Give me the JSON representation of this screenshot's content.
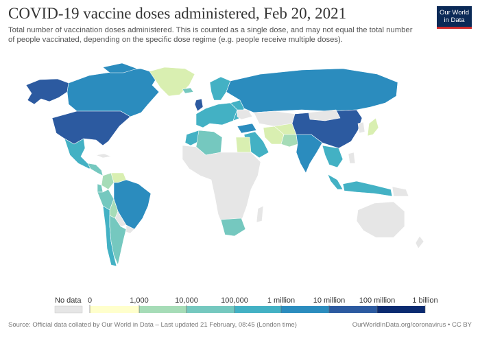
{
  "header": {
    "title": "COVID-19 vaccine doses administered, Feb 20, 2021",
    "subtitle": "Total number of vaccination doses administered. This is counted as a single dose, and may not equal the total number of people vaccinated, depending on the specific dose regime (e.g. people receive multiple doses)."
  },
  "logo": {
    "line1": "Our World",
    "line2": "in Data"
  },
  "legend": {
    "no_data_label": "No data",
    "bins": [
      {
        "label": "0",
        "color": "#ffffcc"
      },
      {
        "label": "1,000",
        "color": "#d9efb1"
      },
      {
        "label": "10,000",
        "color": "#a6dcb7"
      },
      {
        "label": "100,000",
        "color": "#75c8bf"
      },
      {
        "label": "1 million",
        "color": "#43b1c4"
      },
      {
        "label": "10 million",
        "color": "#2b8cbe"
      },
      {
        "label": "100 million",
        "color": "#2c5aa0"
      },
      {
        "label": "1 billion",
        "color": "#0b2a70"
      }
    ]
  },
  "colors": {
    "no_data": "#e6e6e6",
    "border": "#ffffff",
    "c1k": "#d9efb1",
    "c10k": "#a6dcb7",
    "c100k": "#75c8bf",
    "c1m": "#43b1c4",
    "c10m": "#2b8cbe",
    "c100m": "#2c5aa0"
  },
  "footer": {
    "source": "Source: Official data collated by Our World in Data – Last updated 21 February, 08:45 (London time)",
    "site": "OurWorldInData.org/coronavirus • CC BY"
  }
}
